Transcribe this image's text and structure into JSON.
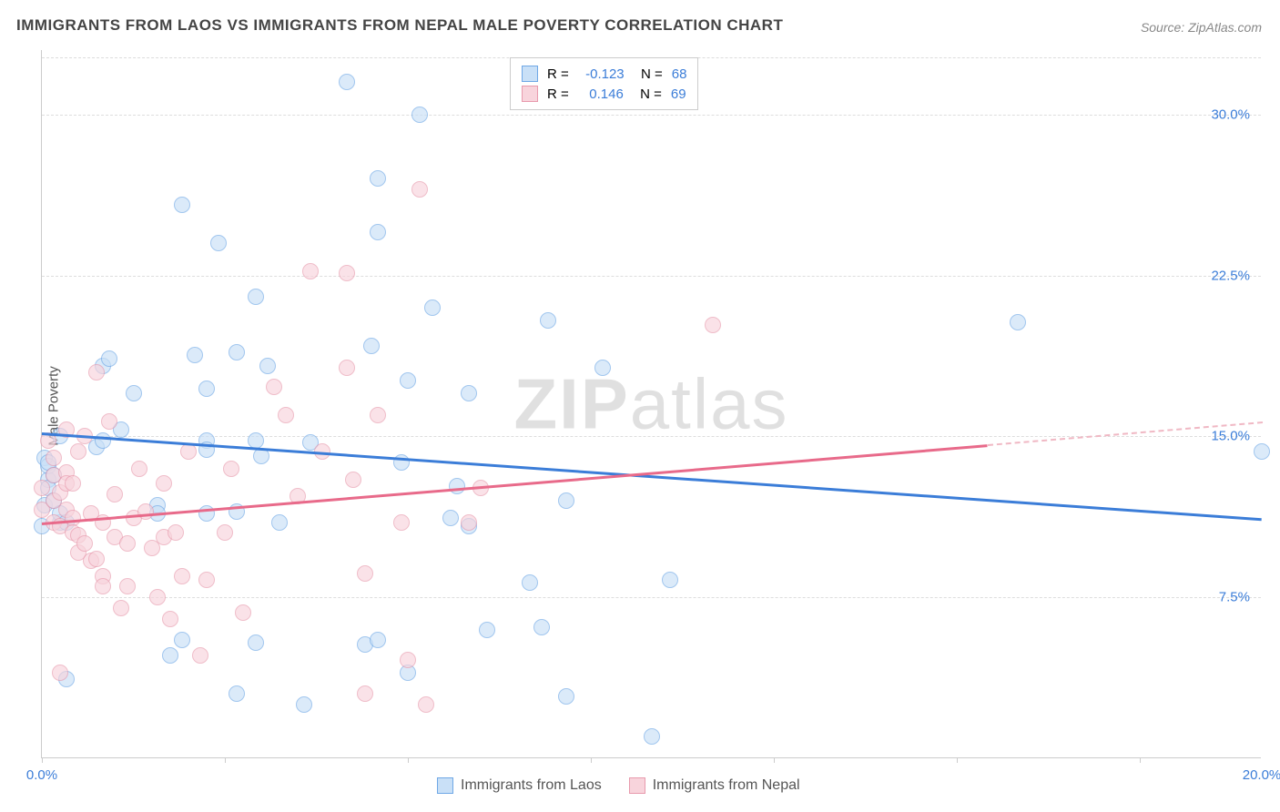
{
  "title": "IMMIGRANTS FROM LAOS VS IMMIGRANTS FROM NEPAL MALE POVERTY CORRELATION CHART",
  "source_prefix": "Source:",
  "source": "ZipAtlas.com",
  "chart": {
    "type": "scatter",
    "ylabel": "Male Poverty",
    "xlim": [
      0,
      20
    ],
    "ylim": [
      0,
      33
    ],
    "ytick_values": [
      7.5,
      15.0,
      22.5,
      30.0
    ],
    "ytick_labels": [
      "7.5%",
      "15.0%",
      "22.5%",
      "30.0%"
    ],
    "xtick_values": [
      0,
      20
    ],
    "xtick_labels": [
      "0.0%",
      "20.0%"
    ],
    "xtick_marks": [
      0,
      3,
      6,
      9,
      12,
      15,
      18
    ],
    "grid_color": "#dddddd",
    "background_color": "#ffffff",
    "point_radius": 9,
    "line_width": 2.5,
    "series": [
      {
        "label": "Immigrants from Laos",
        "color_fill": "#c9e0f7",
        "color_stroke": "#6fa8e6",
        "line_color": "#3b7dd8",
        "r": "-0.123",
        "n": "68",
        "trend": {
          "x0": 0,
          "y0": 15.2,
          "x1": 20,
          "y1": 11.2,
          "solid_until_x": 20
        },
        "points": [
          [
            0.0,
            10.8
          ],
          [
            0.05,
            11.8
          ],
          [
            0.05,
            14.0
          ],
          [
            0.1,
            13.0
          ],
          [
            0.1,
            13.6
          ],
          [
            0.1,
            13.8
          ],
          [
            0.1,
            12.6
          ],
          [
            0.2,
            12.0
          ],
          [
            0.2,
            13.2
          ],
          [
            0.3,
            15.0
          ],
          [
            0.3,
            11.0
          ],
          [
            0.3,
            11.4
          ],
          [
            0.4,
            11.0
          ],
          [
            0.4,
            3.7
          ],
          [
            0.9,
            14.5
          ],
          [
            1.0,
            18.3
          ],
          [
            1.0,
            14.8
          ],
          [
            1.1,
            18.6
          ],
          [
            1.3,
            15.3
          ],
          [
            1.5,
            17.0
          ],
          [
            1.9,
            11.8
          ],
          [
            1.9,
            11.4
          ],
          [
            2.1,
            4.8
          ],
          [
            2.3,
            25.8
          ],
          [
            2.3,
            5.5
          ],
          [
            2.5,
            18.8
          ],
          [
            2.7,
            17.2
          ],
          [
            2.7,
            14.8
          ],
          [
            2.7,
            14.4
          ],
          [
            2.9,
            24.0
          ],
          [
            2.7,
            11.4
          ],
          [
            3.2,
            3.0
          ],
          [
            3.2,
            18.9
          ],
          [
            3.2,
            11.5
          ],
          [
            3.5,
            21.5
          ],
          [
            3.5,
            5.4
          ],
          [
            3.5,
            14.8
          ],
          [
            3.6,
            14.1
          ],
          [
            3.7,
            18.3
          ],
          [
            3.9,
            11.0
          ],
          [
            4.3,
            2.5
          ],
          [
            4.4,
            14.7
          ],
          [
            5.0,
            31.5
          ],
          [
            5.3,
            5.3
          ],
          [
            5.4,
            19.2
          ],
          [
            5.5,
            27.0
          ],
          [
            5.5,
            24.5
          ],
          [
            5.5,
            5.5
          ],
          [
            5.9,
            13.8
          ],
          [
            6.0,
            17.6
          ],
          [
            6.0,
            4.0
          ],
          [
            6.2,
            30.0
          ],
          [
            6.4,
            21.0
          ],
          [
            6.7,
            11.2
          ],
          [
            6.8,
            12.7
          ],
          [
            7.0,
            17.0
          ],
          [
            7.0,
            10.8
          ],
          [
            7.3,
            6.0
          ],
          [
            8.0,
            8.2
          ],
          [
            8.2,
            6.1
          ],
          [
            8.3,
            20.4
          ],
          [
            8.6,
            2.9
          ],
          [
            8.6,
            12.0
          ],
          [
            9.2,
            18.2
          ],
          [
            10.0,
            1.0
          ],
          [
            10.3,
            8.3
          ],
          [
            16.0,
            20.3
          ],
          [
            20.0,
            14.3
          ]
        ]
      },
      {
        "label": "Immigrants from Nepal",
        "color_fill": "#f8d4dc",
        "color_stroke": "#e89aad",
        "line_color": "#e86a8a",
        "r": "0.146",
        "n": "69",
        "trend": {
          "x0": 0,
          "y0": 11.0,
          "x1": 20,
          "y1": 15.7,
          "solid_until_x": 15.5
        },
        "points": [
          [
            0.0,
            12.6
          ],
          [
            0.0,
            11.6
          ],
          [
            0.1,
            14.8
          ],
          [
            0.2,
            14.0
          ],
          [
            0.2,
            12.0
          ],
          [
            0.2,
            13.2
          ],
          [
            0.2,
            11.0
          ],
          [
            0.3,
            12.4
          ],
          [
            0.3,
            10.8
          ],
          [
            0.3,
            4.0
          ],
          [
            0.4,
            15.3
          ],
          [
            0.4,
            13.3
          ],
          [
            0.4,
            12.8
          ],
          [
            0.4,
            11.6
          ],
          [
            0.5,
            12.8
          ],
          [
            0.5,
            11.2
          ],
          [
            0.5,
            10.5
          ],
          [
            0.6,
            14.3
          ],
          [
            0.6,
            10.4
          ],
          [
            0.6,
            9.6
          ],
          [
            0.7,
            15.0
          ],
          [
            0.7,
            10.0
          ],
          [
            0.8,
            11.4
          ],
          [
            0.8,
            9.2
          ],
          [
            0.9,
            9.3
          ],
          [
            0.9,
            18.0
          ],
          [
            1.0,
            11.0
          ],
          [
            1.0,
            8.5
          ],
          [
            1.0,
            8.0
          ],
          [
            1.1,
            15.7
          ],
          [
            1.2,
            12.3
          ],
          [
            1.2,
            10.3
          ],
          [
            1.3,
            7.0
          ],
          [
            1.4,
            8.0
          ],
          [
            1.4,
            10.0
          ],
          [
            1.5,
            11.2
          ],
          [
            1.6,
            13.5
          ],
          [
            1.7,
            11.5
          ],
          [
            1.8,
            9.8
          ],
          [
            1.9,
            7.5
          ],
          [
            2.0,
            10.3
          ],
          [
            2.0,
            12.8
          ],
          [
            2.1,
            6.5
          ],
          [
            2.2,
            10.5
          ],
          [
            2.3,
            8.5
          ],
          [
            2.4,
            14.3
          ],
          [
            2.6,
            4.8
          ],
          [
            2.7,
            8.3
          ],
          [
            3.0,
            10.5
          ],
          [
            3.1,
            13.5
          ],
          [
            3.3,
            6.8
          ],
          [
            3.8,
            17.3
          ],
          [
            4.0,
            16.0
          ],
          [
            4.2,
            12.2
          ],
          [
            4.4,
            22.7
          ],
          [
            4.6,
            14.3
          ],
          [
            5.0,
            22.6
          ],
          [
            5.0,
            18.2
          ],
          [
            5.1,
            13.0
          ],
          [
            5.3,
            8.6
          ],
          [
            5.3,
            3.0
          ],
          [
            5.5,
            16.0
          ],
          [
            5.9,
            11.0
          ],
          [
            6.0,
            4.6
          ],
          [
            6.2,
            26.5
          ],
          [
            6.3,
            2.5
          ],
          [
            7.0,
            11.0
          ],
          [
            7.2,
            12.6
          ],
          [
            11.0,
            20.2
          ]
        ]
      }
    ]
  }
}
